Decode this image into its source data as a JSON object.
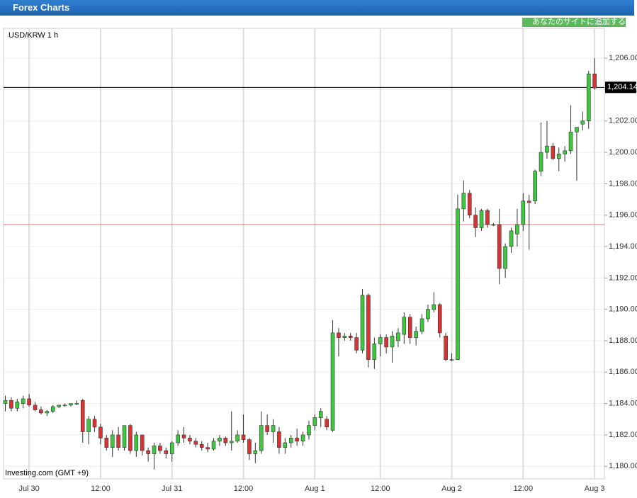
{
  "header": {
    "title": "Forex Charts"
  },
  "button": {
    "label": "あなたのサイトに追加する"
  },
  "chart_data": {
    "type": "candlestick",
    "title": "USD/KRW 1 h",
    "watermark": "Investing.com (GMT +9)",
    "xlim": [
      -0.3,
      100.65
    ],
    "ylim": [
      1179.2,
      1207.9
    ],
    "xticks": [
      {
        "value": 4,
        "label": "Jul 30"
      },
      {
        "value": 16,
        "label": "12:00"
      },
      {
        "value": 28,
        "label": "Jul 31"
      },
      {
        "value": 40,
        "label": "12:00"
      },
      {
        "value": 52,
        "label": "Aug 1"
      },
      {
        "value": 63,
        "label": "12:00"
      },
      {
        "value": 75,
        "label": "Aug 2"
      },
      {
        "value": 87,
        "label": "12:00"
      },
      {
        "value": 99,
        "label": "Aug 3"
      }
    ],
    "yticks": [
      {
        "value": 1180,
        "label": "1,180.00"
      },
      {
        "value": 1182,
        "label": "1,182.00"
      },
      {
        "value": 1184,
        "label": "1,184.00"
      },
      {
        "value": 1186,
        "label": "1,186.00"
      },
      {
        "value": 1188,
        "label": "1,188.00"
      },
      {
        "value": 1190,
        "label": "1,190.00"
      },
      {
        "value": 1192,
        "label": "1,192.00"
      },
      {
        "value": 1194,
        "label": "1,194.00"
      },
      {
        "value": 1196,
        "label": "1,196.00"
      },
      {
        "value": 1198,
        "label": "1,198.00"
      },
      {
        "value": 1200,
        "label": "1,200.00"
      },
      {
        "value": 1202,
        "label": "1,202.00"
      },
      {
        "value": 1204,
        "label": "1,204.00"
      },
      {
        "value": 1206,
        "label": "1,206.00"
      }
    ],
    "grid": true,
    "up_color": "#3ec83e",
    "down_color": "#d83232",
    "price_line": {
      "value": 1204.14,
      "label": "1,204.14",
      "color": "#000000"
    },
    "reference_line": {
      "value": 1195.4,
      "color": "#e07070"
    },
    "candles": {
      "open": [
        1184.0,
        1184.2,
        1183.7,
        1184.0,
        1184.3,
        1183.9,
        1183.6,
        1183.4,
        1183.5,
        1183.8,
        1183.9,
        1183.9,
        1184.0,
        1184.2,
        1182.2,
        1183.0,
        1182.5,
        1181.8,
        1181.2,
        1182.0,
        1181.2,
        1182.6,
        1181.0,
        1182.0,
        1181.0,
        1180.8,
        1181.3,
        1181.0,
        1180.8,
        1181.5,
        1182.0,
        1181.8,
        1181.6,
        1181.4,
        1181.2,
        1181.1,
        1181.6,
        1181.8,
        1181.5,
        1181.6,
        1182.0,
        1181.7,
        1180.8,
        1181.0,
        1182.6,
        1182.2,
        1182.2,
        1181.2,
        1181.5,
        1181.8,
        1181.6,
        1182.0,
        1182.6,
        1183.1,
        1183.0,
        1182.3,
        1188.5,
        1188.2,
        1188.3,
        1188.2,
        1187.4,
        1190.9,
        1186.8,
        1187.8,
        1188.2,
        1187.6,
        1188.0,
        1188.4,
        1189.5,
        1188.2,
        1188.6,
        1189.4,
        1190.0,
        1190.3,
        1188.3,
        1186.8,
        1186.8,
        1196.4,
        1197.4,
        1196.0,
        1195.2,
        1196.3,
        1195.4,
        1195.4,
        1192.6,
        1194.0,
        1194.8,
        1195.4,
        1196.9,
        1196.9,
        1198.8,
        1200.0,
        1200.4,
        1199.6,
        1199.9,
        1200.1,
        1201.3,
        1201.8,
        1202.0,
        1205.0
      ],
      "high": [
        1184.5,
        1184.4,
        1184.3,
        1184.5,
        1184.6,
        1184.1,
        1183.8,
        1183.6,
        1183.9,
        1183.9,
        1184.0,
        1184.0,
        1184.2,
        1184.3,
        1183.2,
        1183.2,
        1182.7,
        1182.0,
        1182.3,
        1182.5,
        1182.6,
        1182.7,
        1182.2,
        1182.0,
        1181.2,
        1181.5,
        1181.5,
        1181.2,
        1181.6,
        1182.3,
        1182.5,
        1182.0,
        1181.8,
        1181.6,
        1181.5,
        1181.8,
        1182.0,
        1181.9,
        1183.5,
        1182.3,
        1183.3,
        1181.8,
        1181.5,
        1183.5,
        1183.3,
        1183.0,
        1182.5,
        1181.8,
        1182.0,
        1182.4,
        1182.2,
        1182.9,
        1183.3,
        1183.7,
        1183.2,
        1189.3,
        1188.8,
        1188.5,
        1188.5,
        1188.5,
        1191.3,
        1191.0,
        1188.2,
        1188.4,
        1188.4,
        1188.6,
        1188.8,
        1189.8,
        1189.7,
        1188.9,
        1189.7,
        1190.3,
        1191.1,
        1190.4,
        1188.5,
        1187.2,
        1197.3,
        1198.2,
        1197.6,
        1196.5,
        1196.4,
        1196.4,
        1195.5,
        1196.4,
        1194.2,
        1195.2,
        1196.4,
        1197.4,
        1197.3,
        1198.9,
        1201.9,
        1202.0,
        1200.6,
        1200.3,
        1200.4,
        1203.0,
        1201.4,
        1202.6,
        1205.2,
        1206.0
      ],
      "low": [
        1183.5,
        1183.5,
        1183.5,
        1183.7,
        1183.8,
        1183.5,
        1183.3,
        1183.2,
        1183.4,
        1183.7,
        1183.8,
        1183.8,
        1183.9,
        1181.5,
        1181.4,
        1182.2,
        1181.4,
        1181.0,
        1180.6,
        1181.0,
        1181.0,
        1180.8,
        1180.6,
        1180.7,
        1180.3,
        1179.8,
        1180.8,
        1180.5,
        1180.3,
        1181.3,
        1181.5,
        1181.4,
        1181.2,
        1181.0,
        1180.9,
        1181.0,
        1181.3,
        1181.3,
        1181.0,
        1181.5,
        1181.5,
        1180.4,
        1180.2,
        1180.8,
        1182.0,
        1181.5,
        1180.8,
        1180.8,
        1181.2,
        1181.3,
        1181.3,
        1181.7,
        1182.3,
        1182.5,
        1182.3,
        1182.2,
        1187.0,
        1188.0,
        1188.0,
        1187.2,
        1187.2,
        1186.3,
        1186.2,
        1187.0,
        1187.2,
        1186.6,
        1187.6,
        1187.8,
        1187.8,
        1187.7,
        1188.4,
        1189.2,
        1189.8,
        1188.2,
        1186.7,
        1186.7,
        1186.8,
        1195.6,
        1195.8,
        1194.6,
        1195.0,
        1195.2,
        1195.3,
        1191.6,
        1192.0,
        1193.6,
        1194.0,
        1195.0,
        1193.8,
        1196.7,
        1198.5,
        1199.6,
        1199.5,
        1198.8,
        1199.4,
        1199.9,
        1198.2,
        1201.4,
        1201.5,
        1204.0
      ],
      "close": [
        1184.2,
        1183.7,
        1184.1,
        1184.3,
        1183.9,
        1183.6,
        1183.4,
        1183.5,
        1183.8,
        1183.9,
        1183.9,
        1184.0,
        1184.0,
        1182.2,
        1183.0,
        1182.5,
        1181.8,
        1181.2,
        1182.0,
        1181.2,
        1182.6,
        1181.0,
        1182.0,
        1181.0,
        1180.8,
        1181.3,
        1181.0,
        1180.8,
        1181.5,
        1182.0,
        1181.8,
        1181.6,
        1181.4,
        1181.2,
        1181.1,
        1181.6,
        1181.8,
        1181.5,
        1181.6,
        1182.0,
        1181.7,
        1180.8,
        1181.0,
        1182.6,
        1182.2,
        1182.6,
        1181.2,
        1181.5,
        1181.8,
        1181.6,
        1182.0,
        1182.6,
        1183.1,
        1183.5,
        1182.5,
        1188.5,
        1188.2,
        1188.3,
        1188.2,
        1187.4,
        1190.9,
        1186.8,
        1187.8,
        1188.2,
        1187.6,
        1188.3,
        1188.5,
        1189.5,
        1188.2,
        1188.6,
        1189.4,
        1190.0,
        1190.3,
        1188.5,
        1186.8,
        1186.8,
        1196.4,
        1197.4,
        1196.0,
        1195.2,
        1196.3,
        1195.4,
        1195.4,
        1192.6,
        1194.0,
        1195.0,
        1195.4,
        1196.9,
        1196.8,
        1198.8,
        1200.0,
        1200.4,
        1199.6,
        1199.9,
        1200.1,
        1201.3,
        1201.6,
        1202.0,
        1205.0,
        1204.1
      ]
    }
  }
}
